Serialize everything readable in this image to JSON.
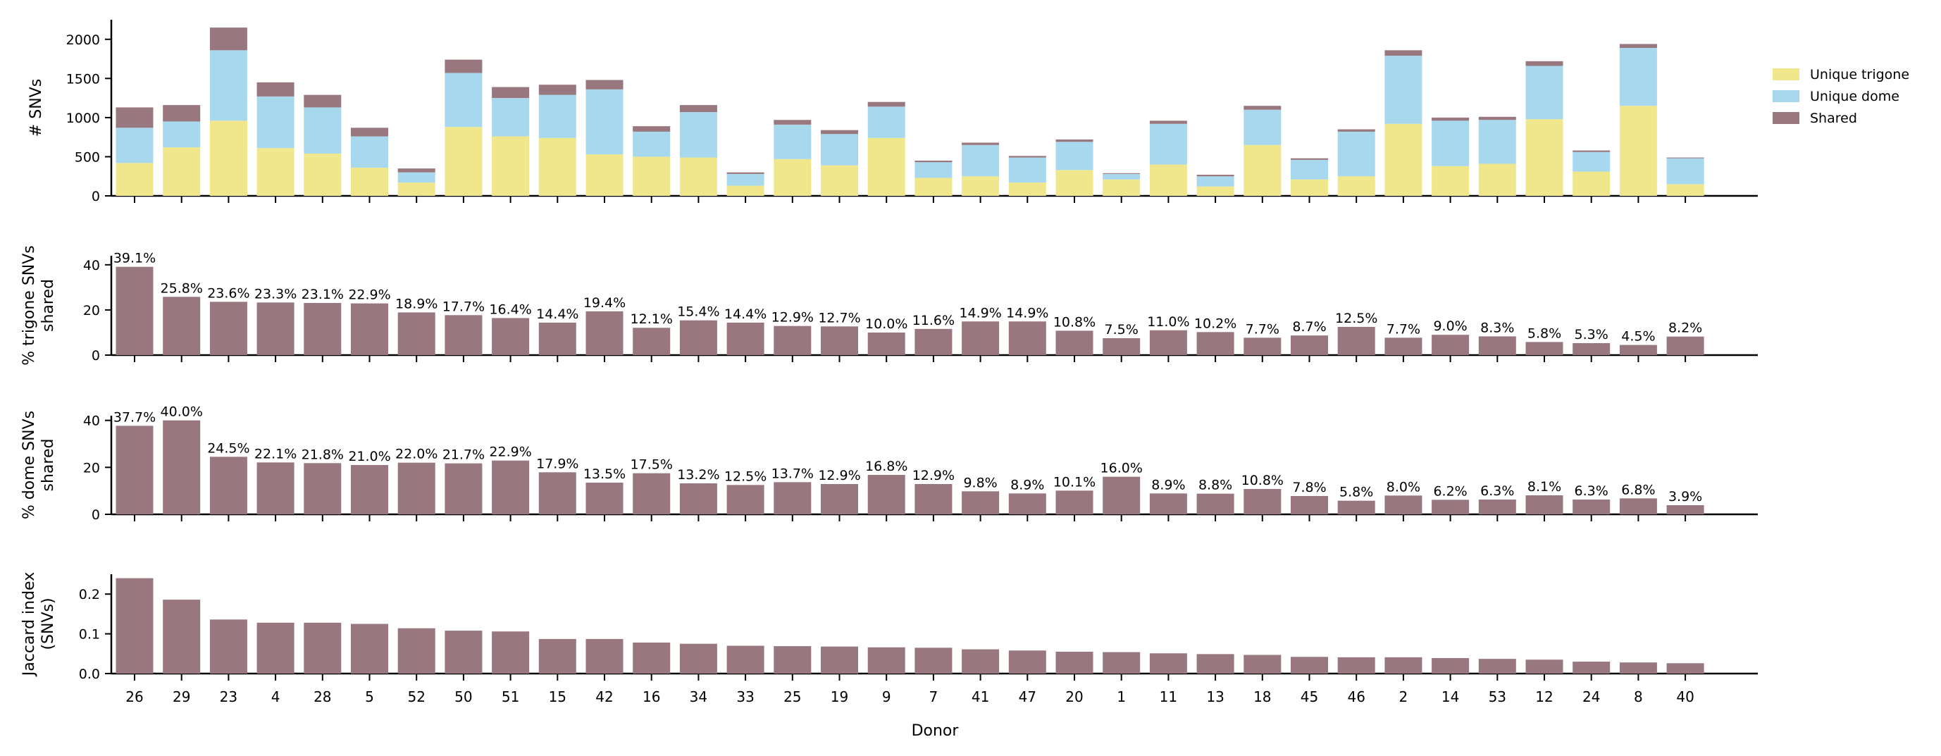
{
  "colors": {
    "unique_trigone": "#f0e68c",
    "unique_dome": "#a8d8ee",
    "shared": "#98787e",
    "axis": "#000000"
  },
  "xlabel": "Donor",
  "chart_data": [
    {
      "type": "bar",
      "stacked": true,
      "ylabel": "# SNVs",
      "ylim": [
        0,
        2250
      ],
      "yticks": [
        0,
        500,
        1000,
        1500,
        2000
      ],
      "xticklabels_shown": false,
      "legend": {
        "placement": "right",
        "entries": [
          "Unique trigone",
          "Unique dome",
          "Shared"
        ]
      },
      "categories": [
        "26",
        "29",
        "23",
        "4",
        "28",
        "5",
        "52",
        "50",
        "51",
        "15",
        "42",
        "16",
        "34",
        "33",
        "25",
        "19",
        "9",
        "7",
        "41",
        "47",
        "20",
        "1",
        "11",
        "13",
        "18",
        "45",
        "46",
        "2",
        "14",
        "53",
        "12",
        "24",
        "8",
        "40"
      ],
      "series": [
        {
          "name": "Unique trigone",
          "values": [
            420,
            620,
            960,
            610,
            540,
            360,
            170,
            880,
            760,
            740,
            530,
            500,
            490,
            130,
            470,
            390,
            740,
            230,
            250,
            170,
            330,
            210,
            400,
            120,
            650,
            210,
            250,
            920,
            380,
            410,
            980,
            310,
            1150,
            150
          ]
        },
        {
          "name": "Unique dome",
          "values": [
            450,
            330,
            900,
            660,
            590,
            400,
            130,
            690,
            490,
            550,
            830,
            320,
            580,
            150,
            440,
            400,
            400,
            200,
            400,
            320,
            360,
            70,
            520,
            130,
            450,
            250,
            570,
            870,
            580,
            560,
            680,
            250,
            740,
            330
          ]
        },
        {
          "name": "Shared",
          "values": [
            260,
            210,
            290,
            180,
            160,
            110,
            50,
            170,
            140,
            130,
            120,
            70,
            90,
            20,
            60,
            50,
            60,
            20,
            30,
            20,
            30,
            10,
            40,
            20,
            50,
            20,
            30,
            70,
            40,
            40,
            60,
            20,
            50,
            10
          ]
        }
      ]
    },
    {
      "type": "bar",
      "ylabel": "% trigone SNVs shared",
      "ylim": [
        0,
        44
      ],
      "yticks": [
        0,
        20,
        40
      ],
      "xticklabels_shown": false,
      "categories": [
        "26",
        "29",
        "23",
        "4",
        "28",
        "5",
        "52",
        "50",
        "51",
        "15",
        "42",
        "16",
        "34",
        "33",
        "25",
        "19",
        "9",
        "7",
        "41",
        "47",
        "20",
        "1",
        "11",
        "13",
        "18",
        "45",
        "46",
        "2",
        "14",
        "53",
        "12",
        "24",
        "8",
        "40"
      ],
      "values": [
        39.1,
        25.8,
        23.6,
        23.3,
        23.1,
        22.9,
        18.9,
        17.7,
        16.4,
        14.4,
        19.4,
        12.1,
        15.4,
        14.4,
        12.9,
        12.7,
        10.0,
        11.6,
        14.9,
        14.9,
        10.8,
        7.5,
        11.0,
        10.2,
        7.7,
        8.7,
        12.5,
        7.7,
        9.0,
        8.3,
        5.8,
        5.3,
        4.5,
        8.2
      ],
      "data_labels": [
        "39.1%",
        "25.8%",
        "23.6%",
        "23.3%",
        "23.1%",
        "22.9%",
        "18.9%",
        "17.7%",
        "16.4%",
        "14.4%",
        "19.4%",
        "12.1%",
        "15.4%",
        "14.4%",
        "12.9%",
        "12.7%",
        "10.0%",
        "11.6%",
        "14.9%",
        "14.9%",
        "10.8%",
        "7.5%",
        "11.0%",
        "10.2%",
        "7.7%",
        "8.7%",
        "12.5%",
        "7.7%",
        "9.0%",
        "8.3%",
        "5.8%",
        "5.3%",
        "4.5%",
        "8.2%"
      ]
    },
    {
      "type": "bar",
      "ylabel": "% dome SNVs shared",
      "ylim": [
        0,
        42
      ],
      "yticks": [
        0,
        20,
        40
      ],
      "xticklabels_shown": false,
      "categories": [
        "26",
        "29",
        "23",
        "4",
        "28",
        "5",
        "52",
        "50",
        "51",
        "15",
        "42",
        "16",
        "34",
        "33",
        "25",
        "19",
        "9",
        "7",
        "41",
        "47",
        "20",
        "1",
        "11",
        "13",
        "18",
        "45",
        "46",
        "2",
        "14",
        "53",
        "12",
        "24",
        "8",
        "40"
      ],
      "values": [
        37.7,
        40.0,
        24.5,
        22.1,
        21.8,
        21.0,
        22.0,
        21.7,
        22.9,
        17.9,
        13.5,
        17.5,
        13.2,
        12.5,
        13.7,
        12.9,
        16.8,
        12.9,
        9.8,
        8.9,
        10.1,
        16.0,
        8.9,
        8.8,
        10.8,
        7.8,
        5.8,
        8.0,
        6.2,
        6.3,
        8.1,
        6.3,
        6.8,
        3.9
      ],
      "data_labels": [
        "37.7%",
        "40.0%",
        "24.5%",
        "22.1%",
        "21.8%",
        "21.0%",
        "22.0%",
        "21.7%",
        "22.9%",
        "17.9%",
        "13.5%",
        "17.5%",
        "13.2%",
        "12.5%",
        "13.7%",
        "12.9%",
        "16.8%",
        "12.9%",
        "9.8%",
        "8.9%",
        "10.1%",
        "16.0%",
        "8.9%",
        "8.8%",
        "10.8%",
        "7.8%",
        "5.8%",
        "8.0%",
        "6.2%",
        "6.3%",
        "8.1%",
        "6.3%",
        "6.8%",
        "3.9%"
      ]
    },
    {
      "type": "bar",
      "ylabel": "Jaccard index (SNVs)",
      "ylim": [
        0,
        0.25
      ],
      "yticks": [
        "0.0",
        "0.1",
        "0.2"
      ],
      "xticklabels_shown": true,
      "categories": [
        "26",
        "29",
        "23",
        "4",
        "28",
        "5",
        "52",
        "50",
        "51",
        "15",
        "42",
        "16",
        "34",
        "33",
        "25",
        "19",
        "9",
        "7",
        "41",
        "47",
        "20",
        "1",
        "11",
        "13",
        "18",
        "45",
        "46",
        "2",
        "14",
        "53",
        "12",
        "24",
        "8",
        "40"
      ],
      "values": [
        0.24,
        0.186,
        0.136,
        0.128,
        0.128,
        0.125,
        0.114,
        0.108,
        0.106,
        0.087,
        0.087,
        0.078,
        0.075,
        0.07,
        0.069,
        0.068,
        0.066,
        0.065,
        0.061,
        0.058,
        0.055,
        0.054,
        0.051,
        0.049,
        0.047,
        0.042,
        0.041,
        0.041,
        0.039,
        0.037,
        0.035,
        0.03,
        0.028,
        0.026
      ]
    }
  ]
}
